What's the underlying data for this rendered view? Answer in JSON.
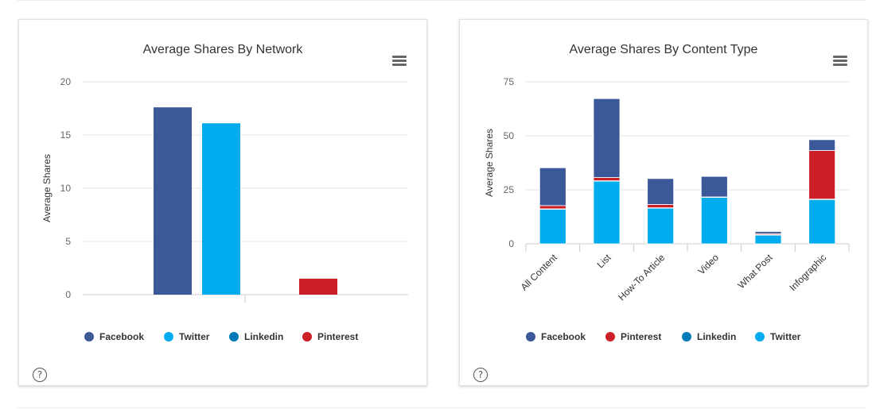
{
  "chart_data": [
    {
      "type": "bar",
      "title": "Average Shares By Network",
      "ylabel": "Average Shares",
      "ylim": [
        0,
        20
      ],
      "yticks": [
        0,
        5,
        10,
        15,
        20
      ],
      "grid": true,
      "legend_placement": "bottom",
      "series": [
        {
          "name": "Facebook",
          "value": 17.6,
          "color": "#3b5898"
        },
        {
          "name": "Twitter",
          "value": 16.1,
          "color": "#00aced"
        },
        {
          "name": "Linkedin",
          "value": 0,
          "color": "#007bb6"
        },
        {
          "name": "Pinterest",
          "value": 1.5,
          "color": "#cb2027"
        }
      ]
    },
    {
      "type": "bar",
      "stacked": true,
      "title": "Average Shares By Content Type",
      "ylabel": "Average Shares",
      "ylim": [
        0,
        75
      ],
      "yticks": [
        0,
        25,
        50,
        75
      ],
      "grid": true,
      "legend_placement": "bottom",
      "categories": [
        "All Content",
        "List",
        "How-To Article",
        "Video",
        "What Post",
        "Infographic"
      ],
      "series": [
        {
          "name": "Facebook",
          "color": "#3b5898",
          "values": [
            17.5,
            36.5,
            12,
            9.5,
            1,
            5
          ]
        },
        {
          "name": "Pinterest",
          "color": "#cb2027",
          "values": [
            1.5,
            1.5,
            1.5,
            0,
            0.5,
            22.5
          ]
        },
        {
          "name": "Linkedin",
          "color": "#007bb6",
          "values": [
            0.2,
            0.2,
            0.2,
            0.2,
            0.2,
            0.2
          ]
        },
        {
          "name": "Twitter",
          "color": "#00aced",
          "values": [
            16,
            29,
            16.5,
            21.5,
            4,
            20.5
          ]
        }
      ]
    }
  ],
  "ui": {
    "help_glyph": "?",
    "menu_icon": "hamburger-menu-icon"
  }
}
